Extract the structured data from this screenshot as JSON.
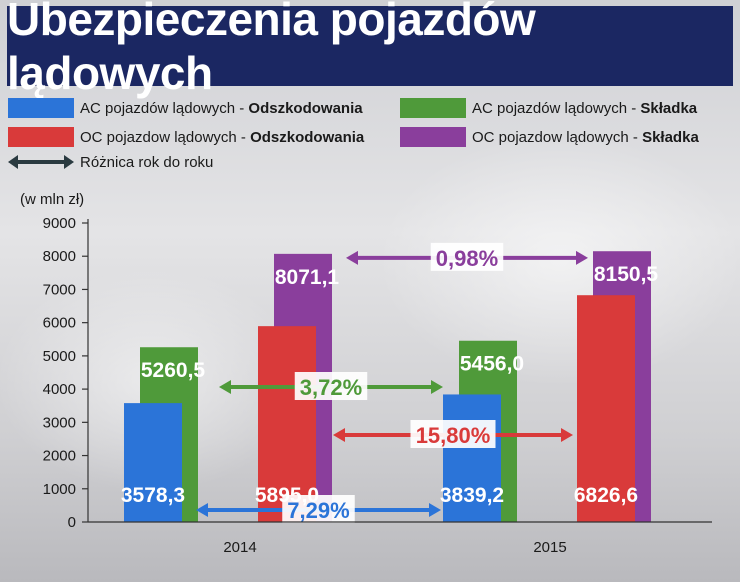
{
  "title": "Ubezpieczenia pojazdów lądowych",
  "legend": [
    {
      "label": "AC pojazdów lądowych - ",
      "bold": "Odszkodowania",
      "color": "#2b74d8"
    },
    {
      "label": "AC pojazdów lądowych - ",
      "bold": "Składka",
      "color": "#4f9a3a"
    },
    {
      "label": "OC pojazdow lądowych - ",
      "bold": "Odszkodowania",
      "color": "#d93a3a"
    },
    {
      "label": "OC pojazdow lądowych - ",
      "bold": "Składka",
      "color": "#8a3e9c"
    },
    {
      "label": "Różnica rok do roku",
      "bold": "",
      "color": "#2a3a40"
    }
  ],
  "chart_data": {
    "type": "bar",
    "title": "Ubezpieczenia pojazdów lądowych",
    "ylabel": "(w mln zł)",
    "xlabel": "",
    "ylim": [
      0,
      9000
    ],
    "yticks": [
      0,
      1000,
      2000,
      3000,
      4000,
      5000,
      6000,
      7000,
      8000,
      9000
    ],
    "categories": [
      "2014",
      "2015"
    ],
    "series": [
      {
        "name": "AC pojazdów lądowych - Odszkodowania",
        "values": [
          3578.3,
          3839.2
        ],
        "labels": [
          "3578,3",
          "3839,2"
        ],
        "color": "#2b74d8"
      },
      {
        "name": "AC pojazdów lądowych - Składka",
        "values": [
          5260.5,
          5456.0
        ],
        "labels": [
          "5260,5",
          "5456,0"
        ],
        "color": "#4f9a3a"
      },
      {
        "name": "OC pojazdow lądowych - Odszkodowania",
        "values": [
          5895.0,
          6826.6
        ],
        "labels": [
          "5895,0",
          "6826,6"
        ],
        "color": "#d93a3a"
      },
      {
        "name": "OC pojazdow lądowych - Składka",
        "values": [
          8071.1,
          8150.5
        ],
        "labels": [
          "8071,1",
          "8150,5"
        ],
        "color": "#8a3e9c"
      }
    ],
    "year_over_year": [
      {
        "series": "OC pojazdow lądowych - Składka",
        "change": "0,98%",
        "color": "#8a3e9c"
      },
      {
        "series": "AC pojazdów lądowych - Składka",
        "change": "3,72%",
        "color": "#4f9a3a"
      },
      {
        "series": "OC pojazdow lądowych - Odszkodowania",
        "change": "15,80%",
        "color": "#d93a3a"
      },
      {
        "series": "AC pojazdów lądowych - Odszkodowania",
        "change": "7,29%",
        "color": "#2b74d8"
      }
    ],
    "legend_position": "top",
    "grid": false
  }
}
